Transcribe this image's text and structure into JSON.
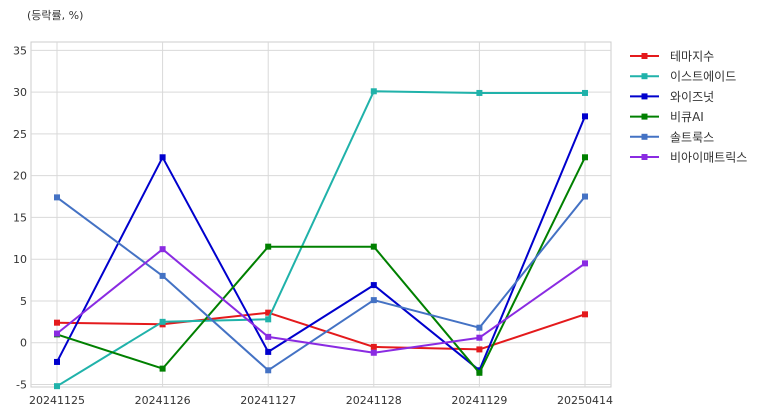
{
  "chart_data": {
    "type": "line",
    "unit_label": "(등락률, %)",
    "title": "",
    "xlabel": "",
    "ylabel": "",
    "categories": [
      "20241125",
      "20241126",
      "20241127",
      "20241128",
      "20241129",
      "20250414"
    ],
    "ylim": [
      -5.3,
      36
    ],
    "yticks": [
      -5,
      0,
      5,
      10,
      15,
      20,
      25,
      30,
      35
    ],
    "grid": true,
    "legend_position": "right",
    "marker": "square",
    "series": [
      {
        "name": "테마지수",
        "color": "#e41a1c",
        "values": [
          2.4,
          2.2,
          3.6,
          -0.5,
          -0.8,
          3.4
        ]
      },
      {
        "name": "이스트에이드",
        "color": "#20b2aa",
        "values": [
          -5.2,
          2.5,
          2.8,
          30.1,
          29.9,
          29.9
        ]
      },
      {
        "name": "와이즈넛",
        "color": "#0000cd",
        "values": [
          -2.3,
          22.2,
          -1.1,
          6.9,
          -3.3,
          27.1
        ]
      },
      {
        "name": "비큐AI",
        "color": "#008000",
        "values": [
          1.0,
          -3.1,
          11.5,
          11.5,
          -3.6,
          22.2
        ]
      },
      {
        "name": "솔트룩스",
        "color": "#4472c4",
        "values": [
          17.4,
          8.0,
          -3.3,
          5.1,
          1.8,
          17.5
        ]
      },
      {
        "name": "비아이매트릭스",
        "color": "#8a2be2",
        "values": [
          1.1,
          11.2,
          0.7,
          -1.2,
          0.6,
          9.5
        ]
      }
    ]
  }
}
